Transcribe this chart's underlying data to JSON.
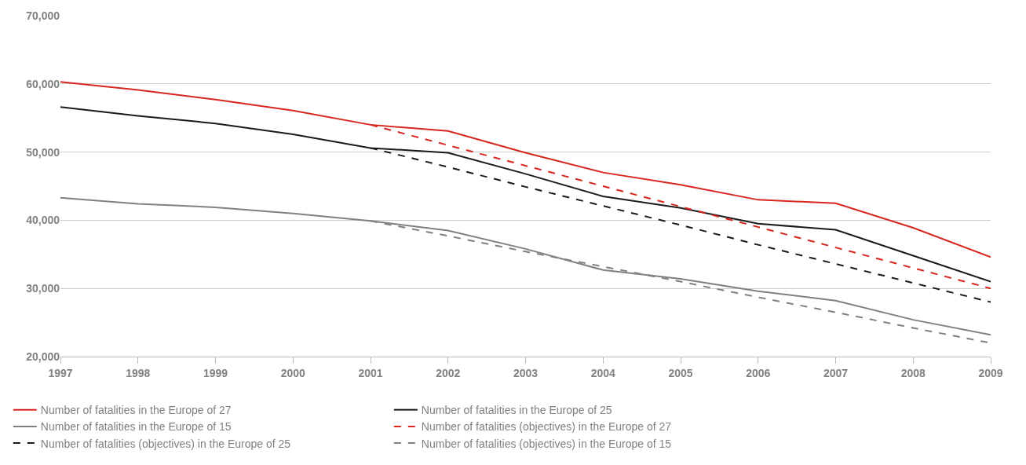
{
  "chart_data": {
    "type": "line",
    "x": [
      1997,
      1998,
      1999,
      2000,
      2001,
      2002,
      2003,
      2004,
      2005,
      2006,
      2007,
      2008,
      2009
    ],
    "xlim": [
      1997,
      2009
    ],
    "xticks": [
      1997,
      1998,
      1999,
      2000,
      2001,
      2002,
      2003,
      2004,
      2005,
      2006,
      2007,
      2008,
      2009
    ],
    "ylim": [
      20000,
      70000
    ],
    "yticks": [
      {
        "value": 20000,
        "label": "20,000"
      },
      {
        "value": 30000,
        "label": "30,000"
      },
      {
        "value": 40000,
        "label": "40,000"
      },
      {
        "value": 50000,
        "label": "50,000"
      },
      {
        "value": 60000,
        "label": "60,000"
      },
      {
        "value": 70000,
        "label": "70,000"
      }
    ],
    "grid": "y",
    "legend": "bottom",
    "marker": "none",
    "series": [
      {
        "name": "Number of fatalities in the Europe of 27",
        "color": "#d7261e",
        "line_style": "solid",
        "values": [
          60300,
          59100,
          57700,
          56100,
          54000,
          53100,
          49900,
          47000,
          45200,
          43000,
          42500,
          38900,
          34600
        ]
      },
      {
        "name": "Number of fatalities in the Europe of 25",
        "color": "#1a1a1a",
        "line_style": "solid",
        "values": [
          56600,
          55300,
          54200,
          52600,
          50600,
          49900,
          46800,
          43500,
          41800,
          39500,
          38600,
          34800,
          31000
        ]
      },
      {
        "name": "Number of fatalities in the Europe of 15",
        "color": "#808080",
        "line_style": "solid",
        "values": [
          43300,
          42400,
          41900,
          41000,
          39900,
          38500,
          35800,
          32700,
          31400,
          29600,
          28200,
          25400,
          23200
        ]
      },
      {
        "name": "Number of fatalities (objectives) in the Europe of 27",
        "color": "#d7261e",
        "line_style": "dashed",
        "values": [
          null,
          null,
          null,
          null,
          54000,
          51000,
          48000,
          45000,
          42000,
          39000,
          36000,
          33000,
          30000
        ]
      },
      {
        "name": "Number of fatalities (objectives) in the Europe of 25",
        "color": "#1a1a1a",
        "line_style": "dashed",
        "values": [
          null,
          null,
          null,
          null,
          50600,
          47800,
          44900,
          42100,
          39300,
          36400,
          33600,
          30800,
          28000
        ]
      },
      {
        "name": "Number of fatalities (objectives) in the Europe of 15",
        "color": "#808080",
        "line_style": "dashed",
        "values": [
          null,
          null,
          null,
          null,
          39900,
          37700,
          35400,
          33200,
          31000,
          28700,
          26500,
          24200,
          22000
        ]
      }
    ]
  }
}
